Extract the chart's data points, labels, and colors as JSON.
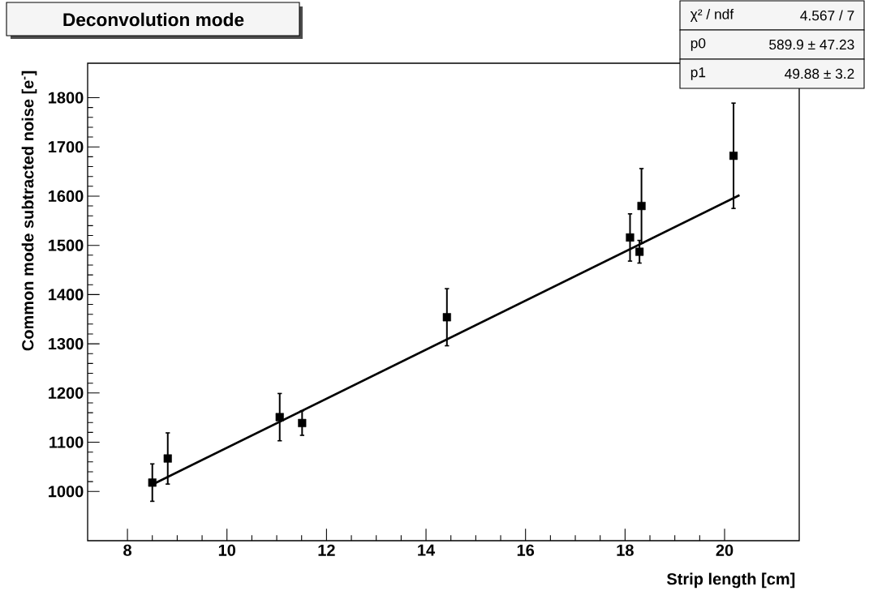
{
  "chart_data": {
    "type": "scatter",
    "title": "Deconvolution mode",
    "xlabel": "Strip length [cm]",
    "ylabel": "Common mode subtracted noise [e$^{-}$]",
    "xlim": [
      7.2,
      21.5
    ],
    "ylim": [
      900,
      1870
    ],
    "xticks": [
      8,
      10,
      12,
      14,
      16,
      18,
      20
    ],
    "yticks": [
      1000,
      1100,
      1200,
      1300,
      1400,
      1500,
      1600,
      1700,
      1800
    ],
    "marker": "square",
    "series": [
      {
        "color": "#000000",
        "x": [
          8.5,
          8.81,
          11.06,
          11.51,
          14.42,
          18.1,
          18.33,
          18.29,
          20.18
        ],
        "values": [
          1018,
          1067,
          1151,
          1139,
          1354,
          1516,
          1580,
          1487,
          1682
        ],
        "errors": [
          38,
          52,
          48,
          25,
          58,
          48,
          76,
          23,
          107
        ]
      },
      {
        "type": "line",
        "color": "#000000",
        "marker": "none",
        "x": [
          8.5,
          20.3
        ],
        "values": [
          1014,
          1602
        ]
      }
    ],
    "annotations": [
      "χ² / ndf",
      "4.567 / 7",
      "p0",
      "589.9 ± 47.23",
      "p1",
      "49.88 ± 3.2"
    ]
  }
}
